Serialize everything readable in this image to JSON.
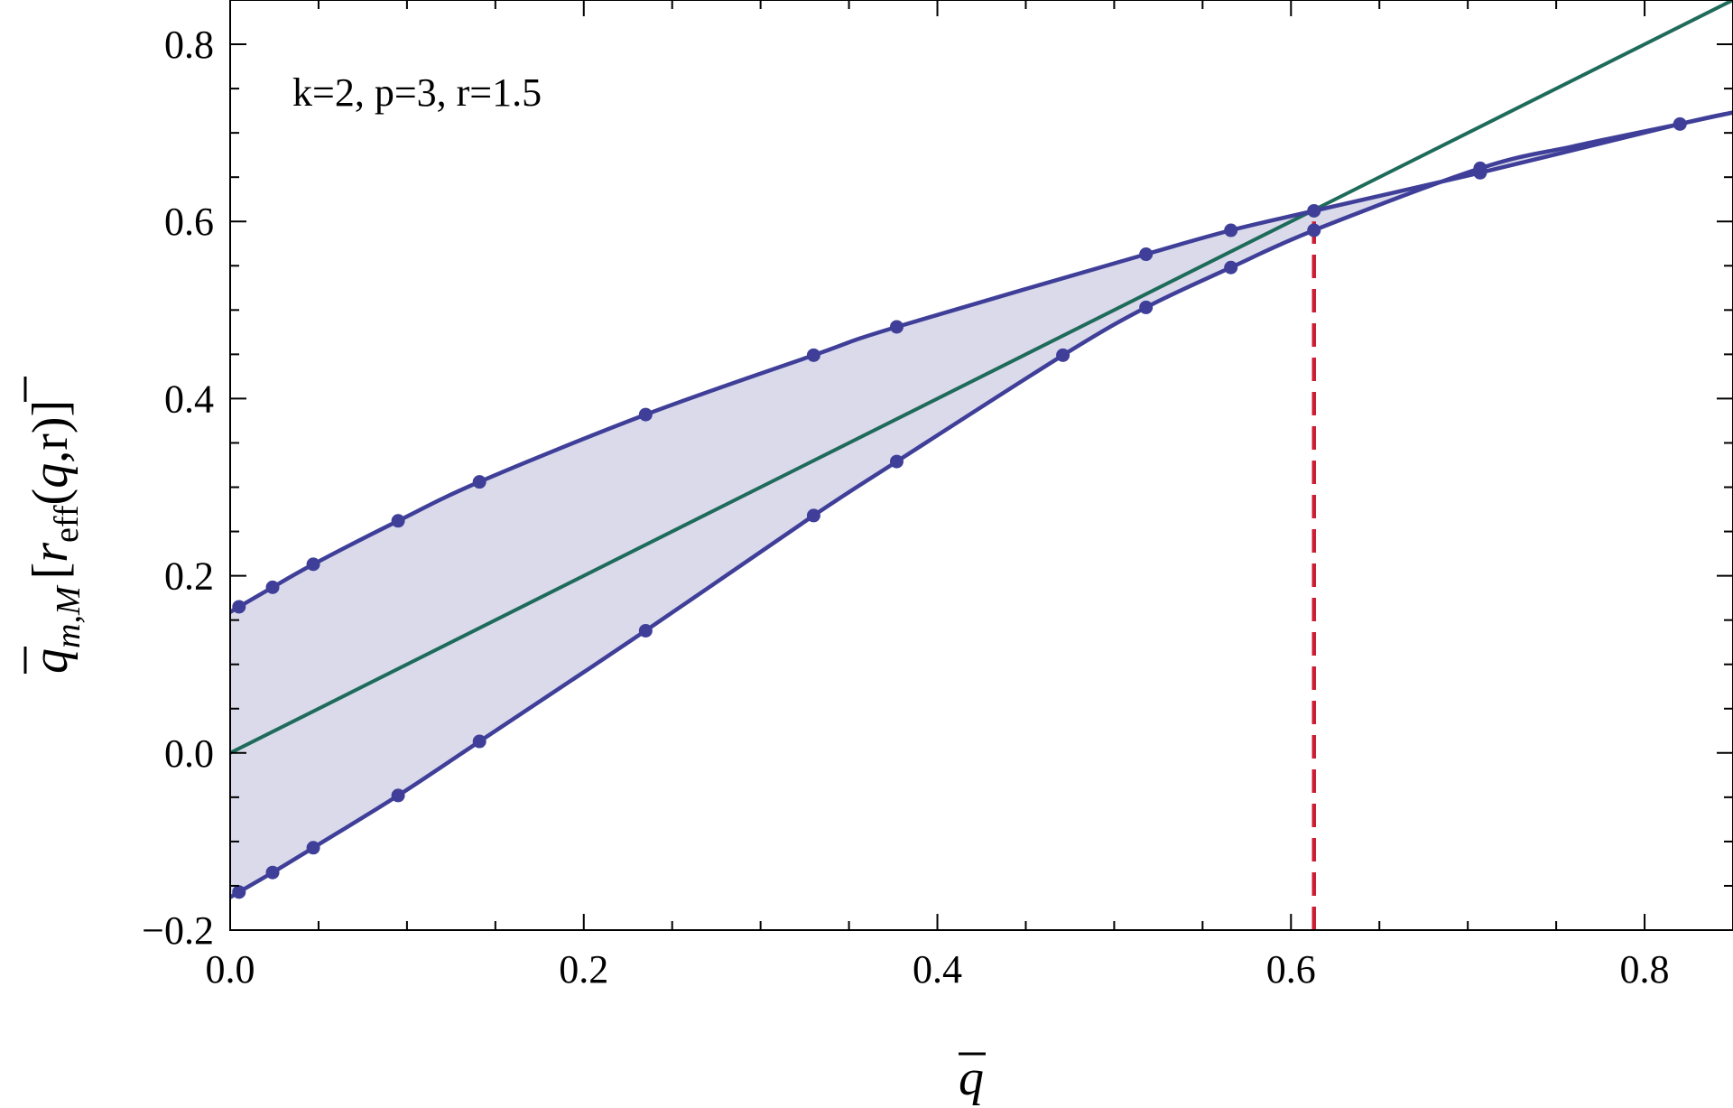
{
  "chart_data": {
    "type": "line",
    "annotation": "k=2, p=3, r=1.5",
    "xlabel": "q",
    "ylabel": {
      "base": "q",
      "sub": "m,M",
      "open": "[",
      "r": "r",
      "r_sub": "eff",
      "arg_q": "q",
      "arg_rest": ",r)]",
      "paren_open": "("
    },
    "xlim": [
      0.0,
      0.85
    ],
    "ylim": [
      -0.2,
      0.85
    ],
    "x_ticks": [
      0.0,
      0.2,
      0.4,
      0.6,
      0.8
    ],
    "x_tick_labels": [
      "0.0",
      "0.2",
      "0.4",
      "0.6",
      "0.8"
    ],
    "y_ticks": [
      -0.2,
      0.0,
      0.2,
      0.4,
      0.6,
      0.8
    ],
    "y_tick_labels": [
      "−0.2",
      "0.0",
      "0.2",
      "0.4",
      "0.6",
      "0.8"
    ],
    "grid": false,
    "colors": {
      "curve": "#3F3F99",
      "fill": "#DADAEB",
      "diagonal": "#1F6B5B",
      "dashed": "#CC1F33",
      "axis": "#000000"
    },
    "series": [
      {
        "points": [
          [
            0.005,
            0.165
          ],
          [
            0.024,
            0.187
          ],
          [
            0.047,
            0.213
          ],
          [
            0.095,
            0.262
          ],
          [
            0.141,
            0.306
          ],
          [
            0.235,
            0.382
          ],
          [
            0.33,
            0.449
          ],
          [
            0.377,
            0.481
          ],
          [
            0.518,
            0.563
          ],
          [
            0.566,
            0.59
          ],
          [
            0.613,
            0.612
          ],
          [
            0.707,
            0.655
          ],
          [
            0.82,
            0.71
          ]
        ],
        "curve": [
          [
            0.0,
            0.159
          ],
          [
            0.005,
            0.165
          ],
          [
            0.024,
            0.187
          ],
          [
            0.047,
            0.213
          ],
          [
            0.095,
            0.262
          ],
          [
            0.141,
            0.306
          ],
          [
            0.235,
            0.382
          ],
          [
            0.33,
            0.449
          ],
          [
            0.377,
            0.481
          ],
          [
            0.518,
            0.563
          ],
          [
            0.566,
            0.59
          ],
          [
            0.613,
            0.612
          ],
          [
            0.707,
            0.655
          ],
          [
            0.82,
            0.71
          ],
          [
            0.85,
            0.723
          ]
        ]
      },
      {
        "points": [
          [
            0.005,
            -0.157
          ],
          [
            0.024,
            -0.135
          ],
          [
            0.047,
            -0.107
          ],
          [
            0.095,
            -0.048
          ],
          [
            0.141,
            0.013
          ],
          [
            0.235,
            0.138
          ],
          [
            0.33,
            0.268
          ],
          [
            0.377,
            0.329
          ],
          [
            0.471,
            0.449
          ],
          [
            0.518,
            0.503
          ],
          [
            0.566,
            0.548
          ],
          [
            0.613,
            0.59
          ],
          [
            0.707,
            0.66
          ]
        ],
        "curve": [
          [
            0.0,
            -0.163
          ],
          [
            0.005,
            -0.157
          ],
          [
            0.024,
            -0.135
          ],
          [
            0.047,
            -0.107
          ],
          [
            0.095,
            -0.048
          ],
          [
            0.141,
            0.013
          ],
          [
            0.235,
            0.138
          ],
          [
            0.33,
            0.268
          ],
          [
            0.377,
            0.329
          ],
          [
            0.471,
            0.449
          ],
          [
            0.518,
            0.503
          ],
          [
            0.566,
            0.548
          ],
          [
            0.613,
            0.59
          ],
          [
            0.707,
            0.66
          ],
          [
            0.76,
            0.685
          ],
          [
            0.82,
            0.71
          ],
          [
            0.85,
            0.723
          ]
        ]
      }
    ],
    "diagonal": [
      [
        0.0,
        0.0
      ],
      [
        0.85,
        0.85
      ]
    ],
    "vline": {
      "x": 0.613,
      "y_from": -0.2,
      "y_to": 0.6
    }
  }
}
